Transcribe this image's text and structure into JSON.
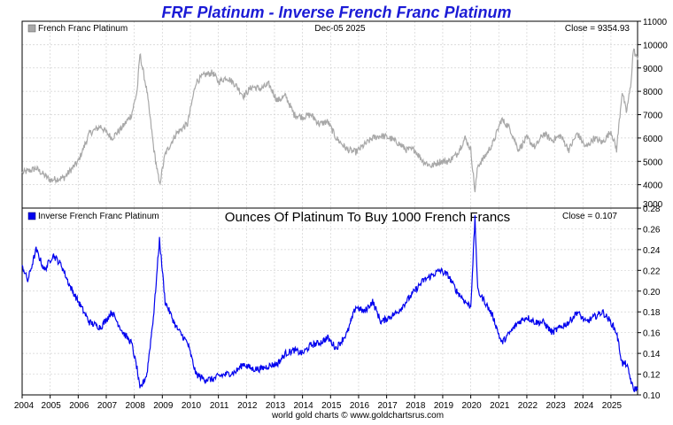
{
  "title": "FRF Platinum - Inverse French Franc Platinum",
  "footer": "world gold charts © www.goldchartsrus.com",
  "colors": {
    "title": "#1b1bd6",
    "series_top": "#a8a8a8",
    "series_bottom": "#0000ee",
    "grid": "#d2d2d2",
    "frame": "#000000"
  },
  "chart_data": [
    {
      "type": "line",
      "panel": "top",
      "legend": "French Franc Platinum",
      "date_label": "Dec-05  2025",
      "close_label": "Close = 9354.93",
      "x_range": [
        2004.0,
        2025.95
      ],
      "ylim": [
        3000,
        11000
      ],
      "yticks": [
        3000,
        4000,
        5000,
        6000,
        7000,
        8000,
        9000,
        10000,
        11000
      ],
      "ytick_labels": [
        "3000",
        "4000",
        "5000",
        "6000",
        "7000",
        "8000",
        "9000",
        "10000",
        "11000"
      ],
      "x": [
        2004.0,
        2004.5,
        2005.0,
        2005.5,
        2006.0,
        2006.4,
        2006.8,
        2007.2,
        2007.6,
        2007.9,
        2008.1,
        2008.2,
        2008.45,
        2008.7,
        2008.9,
        2009.1,
        2009.5,
        2009.9,
        2010.2,
        2010.5,
        2010.8,
        2011.0,
        2011.3,
        2011.6,
        2011.9,
        2012.2,
        2012.5,
        2012.8,
        2013.1,
        2013.4,
        2013.7,
        2014.0,
        2014.3,
        2014.6,
        2014.9,
        2015.2,
        2015.6,
        2015.9,
        2016.2,
        2016.5,
        2016.8,
        2017.1,
        2017.4,
        2017.7,
        2018.0,
        2018.3,
        2018.6,
        2018.9,
        2019.2,
        2019.5,
        2019.8,
        2020.0,
        2020.15,
        2020.25,
        2020.5,
        2020.8,
        2021.1,
        2021.4,
        2021.7,
        2022.0,
        2022.3,
        2022.6,
        2022.9,
        2023.2,
        2023.5,
        2023.8,
        2024.1,
        2024.4,
        2024.7,
        2025.0,
        2025.2,
        2025.4,
        2025.55,
        2025.7,
        2025.8,
        2025.95
      ],
      "values": [
        4500,
        4700,
        4200,
        4300,
        5000,
        6200,
        6500,
        6000,
        6500,
        7000,
        8000,
        9600,
        8000,
        5500,
        4000,
        5300,
        6200,
        6600,
        8400,
        8700,
        8800,
        8400,
        8600,
        8300,
        7800,
        8200,
        8100,
        8300,
        7600,
        7800,
        7000,
        6900,
        7000,
        6600,
        6700,
        6000,
        5500,
        5400,
        5700,
        6000,
        6100,
        6000,
        5800,
        5500,
        5500,
        5000,
        4800,
        5000,
        5000,
        5300,
        6000,
        5500,
        3700,
        4800,
        5200,
        5800,
        6800,
        6400,
        5500,
        6000,
        5600,
        6200,
        5900,
        6100,
        5500,
        6200,
        5600,
        6000,
        5800,
        6300,
        5500,
        8000,
        7100,
        8200,
        9800,
        9350
      ]
    },
    {
      "type": "line",
      "panel": "bottom",
      "legend": "Inverse French Franc Platinum",
      "subtitle": "Ounces Of Platinum To Buy 1000 French Francs",
      "close_label": "Close = 0.107",
      "x_range": [
        2004.0,
        2025.95
      ],
      "ylim": [
        0.1,
        0.28
      ],
      "yticks": [
        0.1,
        0.12,
        0.14,
        0.16,
        0.18,
        0.2,
        0.22,
        0.24,
        0.26,
        0.28
      ],
      "ytick_labels": [
        "0.10",
        "0.12",
        "0.14",
        "0.16",
        "0.18",
        "0.20",
        "0.22",
        "0.24",
        "0.26",
        "0.28"
      ],
      "xticks": [
        2004,
        2005,
        2006,
        2007,
        2008,
        2009,
        2010,
        2011,
        2012,
        2013,
        2014,
        2015,
        2016,
        2017,
        2018,
        2019,
        2020,
        2021,
        2022,
        2023,
        2024,
        2025
      ],
      "xtick_labels": [
        "2004",
        "2005",
        "2006",
        "2007",
        "2008",
        "2009",
        "2010",
        "2011",
        "2012",
        "2013",
        "2014",
        "2015",
        "2016",
        "2017",
        "2018",
        "2019",
        "2020",
        "2021",
        "2022",
        "2023",
        "2024",
        "2025"
      ],
      "x": [
        2004.0,
        2004.2,
        2004.5,
        2004.8,
        2005.1,
        2005.4,
        2005.7,
        2006.0,
        2006.4,
        2006.8,
        2007.2,
        2007.6,
        2007.9,
        2008.1,
        2008.2,
        2008.45,
        2008.7,
        2008.9,
        2009.1,
        2009.5,
        2009.9,
        2010.2,
        2010.5,
        2010.8,
        2011.0,
        2011.3,
        2011.6,
        2011.9,
        2012.2,
        2012.5,
        2012.8,
        2013.1,
        2013.4,
        2013.7,
        2014.0,
        2014.3,
        2014.6,
        2014.9,
        2015.2,
        2015.6,
        2015.9,
        2016.2,
        2016.5,
        2016.8,
        2017.1,
        2017.4,
        2017.7,
        2018.0,
        2018.3,
        2018.6,
        2018.9,
        2019.2,
        2019.5,
        2019.8,
        2020.0,
        2020.15,
        2020.25,
        2020.5,
        2020.8,
        2021.1,
        2021.4,
        2021.7,
        2022.0,
        2022.3,
        2022.6,
        2022.9,
        2023.2,
        2023.5,
        2023.8,
        2024.1,
        2024.4,
        2024.7,
        2025.0,
        2025.2,
        2025.4,
        2025.55,
        2025.7,
        2025.8,
        2025.95
      ],
      "values": [
        0.225,
        0.21,
        0.24,
        0.22,
        0.235,
        0.225,
        0.205,
        0.19,
        0.17,
        0.165,
        0.18,
        0.16,
        0.15,
        0.125,
        0.105,
        0.12,
        0.18,
        0.25,
        0.19,
        0.165,
        0.15,
        0.12,
        0.115,
        0.115,
        0.118,
        0.12,
        0.122,
        0.13,
        0.125,
        0.125,
        0.128,
        0.13,
        0.14,
        0.143,
        0.14,
        0.148,
        0.15,
        0.155,
        0.145,
        0.16,
        0.185,
        0.18,
        0.19,
        0.17,
        0.175,
        0.18,
        0.19,
        0.2,
        0.21,
        0.215,
        0.22,
        0.215,
        0.2,
        0.19,
        0.185,
        0.27,
        0.2,
        0.19,
        0.175,
        0.15,
        0.16,
        0.17,
        0.175,
        0.17,
        0.17,
        0.16,
        0.165,
        0.17,
        0.18,
        0.17,
        0.175,
        0.18,
        0.17,
        0.16,
        0.13,
        0.13,
        0.115,
        0.105,
        0.107
      ]
    }
  ]
}
